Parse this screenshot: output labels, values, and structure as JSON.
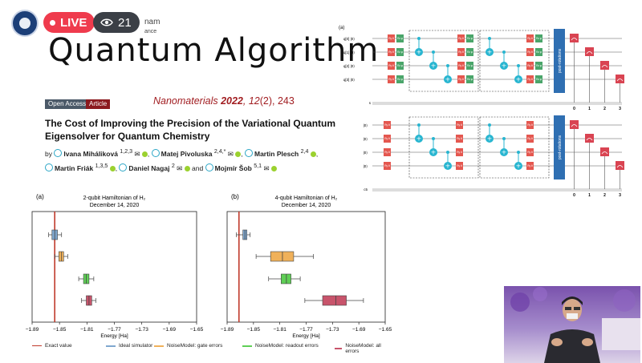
{
  "overlay": {
    "live_label": "LIVE",
    "viewer_count": "21",
    "behind_text_1": "nam",
    "behind_text_2": "ance"
  },
  "slide": {
    "title": "Quantum Algorithm",
    "open_access": "Open Access",
    "article": "Article",
    "journal_name": "Nanomaterials",
    "journal_year": "2022",
    "journal_vol": "12",
    "journal_issue": "(2), 243",
    "paper_title": "The Cost of Improving the Precision of the Variational Quantum Eigensolver for Quantum Chemistry",
    "by": "by",
    "authors": [
      {
        "name": "Ivana Miháliková",
        "sup": "1,2,3"
      },
      {
        "name": "Matej Pivoluska",
        "sup": "2,4,*"
      },
      {
        "name": "Martin Plesch",
        "sup": "2,4"
      },
      {
        "name": "Martin Friák",
        "sup": "1,3,5"
      },
      {
        "name": "Daniel Nagaj",
        "sup": "2"
      },
      {
        "name": "Mojmír Šob",
        "sup": "5,1"
      }
    ],
    "and": "and"
  },
  "circuits": {
    "panel_label": "(a)",
    "post_rotations": "post-rotations",
    "top_qubits": [
      "q[0] |0⟩",
      "q[1] |0⟩",
      "q[2] |0⟩",
      "q[3] |0⟩"
    ],
    "bottom_qubits": [
      "|0⟩",
      "|0⟩",
      "|0⟩",
      "|0⟩"
    ],
    "top_classical": "s",
    "bottom_classical": "c5",
    "measure_indices": [
      "0",
      "1",
      "2",
      "3"
    ],
    "gate_labels": [
      "Ry θ",
      "Rz φ"
    ]
  },
  "legend": [
    {
      "label": "Exact value",
      "color": "#c0392b"
    },
    {
      "label": "Ideal simulator",
      "color": "#7fa7cf"
    },
    {
      "label": "NoiseModel: gate errors",
      "color": "#f0b15a"
    },
    {
      "label": "NoiseModel: readout errors",
      "color": "#5fcf56"
    },
    {
      "label": "NoiseModel: all errors",
      "color": "#c8546b"
    }
  ],
  "chart_data": [
    {
      "type": "box",
      "panel": "(a)",
      "title": "2-qubit Hamiltonian of H₂",
      "subtitle": "December 14, 2020",
      "xlabel": "Energy [Ha]",
      "xlim": [
        -1.89,
        -1.65
      ],
      "xticks": [
        "−1.89",
        "−1.85",
        "−1.81",
        "−1.77",
        "−1.73",
        "−1.69",
        "−1.65"
      ],
      "exact_value": -1.857,
      "series": [
        {
          "name": "Ideal simulator",
          "color": "#7fa7cf",
          "whisker": [
            -1.866,
            -1.847
          ],
          "box": [
            -1.861,
            -1.853
          ],
          "median": -1.857
        },
        {
          "name": "NoiseModel: gate errors",
          "color": "#f0b15a",
          "whisker": [
            -1.857,
            -1.838
          ],
          "box": [
            -1.851,
            -1.844
          ],
          "median": -1.847
        },
        {
          "name": "NoiseModel: readout errors",
          "color": "#5fcf56",
          "whisker": [
            -1.822,
            -1.8
          ],
          "box": [
            -1.815,
            -1.807
          ],
          "median": -1.811
        },
        {
          "name": "NoiseModel: all errors",
          "color": "#c8546b",
          "whisker": [
            -1.818,
            -1.797
          ],
          "box": [
            -1.811,
            -1.803
          ],
          "median": -1.807
        }
      ]
    },
    {
      "type": "box",
      "panel": "(b)",
      "title": "4-qubit Hamiltonian of H₂",
      "subtitle": "December 14, 2020",
      "xlabel": "Energy [Ha]",
      "xlim": [
        -1.89,
        -1.65
      ],
      "xticks": [
        "−1.89",
        "−1.85",
        "−1.81",
        "−1.77",
        "−1.73",
        "−1.69",
        "−1.65"
      ],
      "exact_value": -1.872,
      "series": [
        {
          "name": "Ideal simulator",
          "color": "#7fa7cf",
          "whisker": [
            -1.876,
            -1.855
          ],
          "box": [
            -1.866,
            -1.86
          ],
          "median": -1.863
        },
        {
          "name": "NoiseModel: gate errors",
          "color": "#f0b15a",
          "whisker": [
            -1.846,
            -1.759
          ],
          "box": [
            -1.824,
            -1.789
          ],
          "median": -1.806
        },
        {
          "name": "NoiseModel: readout errors",
          "color": "#5fcf56",
          "whisker": [
            -1.827,
            -1.779
          ],
          "box": [
            -1.808,
            -1.793
          ],
          "median": -1.8
        },
        {
          "name": "NoiseModel: all errors",
          "color": "#c8546b",
          "whisker": [
            -1.772,
            -1.683
          ],
          "box": [
            -1.745,
            -1.709
          ],
          "median": -1.725
        }
      ]
    }
  ]
}
